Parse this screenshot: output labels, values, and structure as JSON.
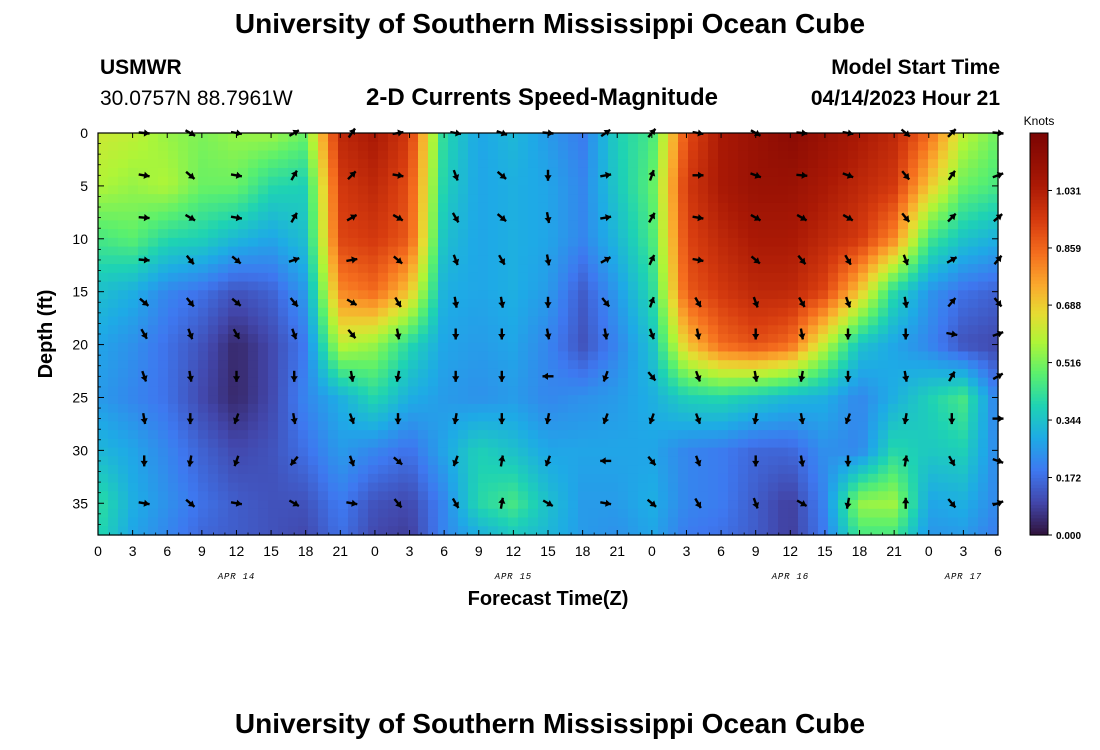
{
  "page": {
    "title": "University of Southern Mississippi Ocean Cube",
    "title_bottom": "University of Southern Mississippi Ocean Cube",
    "station": "USMWR",
    "coords": "30.0757N  88.7961W",
    "plot_title": "2-D Currents Speed-Magnitude",
    "model_label": "Model Start Time",
    "model_time": "04/14/2023 Hour 21"
  },
  "chart_data": {
    "type": "heatmap",
    "title": "2-D Currents Speed-Magnitude",
    "xlabel": "Forecast Time(Z)",
    "ylabel": "Depth (ft)",
    "x_range_hours": [
      0,
      78
    ],
    "ylim": [
      0,
      38
    ],
    "y_inverted": true,
    "x_tick_labels": [
      "0",
      "3",
      "6",
      "9",
      "12",
      "15",
      "18",
      "21",
      "0",
      "3",
      "6",
      "9",
      "12",
      "15",
      "18",
      "21",
      "0",
      "3",
      "6",
      "9",
      "12",
      "15",
      "18",
      "21",
      "0",
      "3",
      "6"
    ],
    "date_labels": [
      {
        "hour": 12,
        "label": "APR 14"
      },
      {
        "hour": 36,
        "label": "APR 15"
      },
      {
        "hour": 60,
        "label": "APR 16"
      },
      {
        "hour": 75,
        "label": "APR 17"
      }
    ],
    "y_ticks": [
      0,
      5,
      10,
      15,
      20,
      25,
      30,
      35
    ],
    "colorbar": {
      "label": "Knots",
      "ticks": [
        "1.031",
        "0.859",
        "0.688",
        "0.516",
        "0.344",
        "0.172",
        "0.000"
      ],
      "min": 0.0,
      "max": 1.203
    },
    "speed_field": {
      "note": "Approximate current speed (knots). Rows = depth (ft), columns = forecast hour.",
      "hours": [
        0,
        3,
        6,
        9,
        12,
        15,
        18,
        21,
        24,
        27,
        30,
        33,
        36,
        39,
        42,
        45,
        48,
        51,
        54,
        57,
        60,
        63,
        66,
        69,
        72,
        75,
        78
      ],
      "depths": [
        0,
        5,
        10,
        15,
        20,
        25,
        30,
        35,
        38
      ],
      "values": [
        [
          0.62,
          0.6,
          0.55,
          0.52,
          0.55,
          0.56,
          0.5,
          1.0,
          1.05,
          0.95,
          0.4,
          0.28,
          0.32,
          0.26,
          0.2,
          0.38,
          0.45,
          0.9,
          1.05,
          1.1,
          1.15,
          1.1,
          1.05,
          1.0,
          0.85,
          0.6,
          0.5
        ],
        [
          0.58,
          0.55,
          0.58,
          0.5,
          0.5,
          0.4,
          0.38,
          0.95,
          1.0,
          0.9,
          0.38,
          0.28,
          0.3,
          0.28,
          0.22,
          0.36,
          0.48,
          0.95,
          1.05,
          1.1,
          1.1,
          1.05,
          1.0,
          0.95,
          0.7,
          0.5,
          0.45
        ],
        [
          0.45,
          0.48,
          0.4,
          0.38,
          0.32,
          0.28,
          0.34,
          0.92,
          0.95,
          0.88,
          0.34,
          0.28,
          0.3,
          0.28,
          0.22,
          0.32,
          0.45,
          0.92,
          1.0,
          1.05,
          1.05,
          1.0,
          0.95,
          0.8,
          0.45,
          0.35,
          0.3
        ],
        [
          0.34,
          0.3,
          0.22,
          0.18,
          0.12,
          0.15,
          0.26,
          0.8,
          0.85,
          0.7,
          0.3,
          0.28,
          0.3,
          0.26,
          0.14,
          0.26,
          0.4,
          0.88,
          0.95,
          1.0,
          1.0,
          0.92,
          0.7,
          0.4,
          0.25,
          0.18,
          0.15
        ],
        [
          0.28,
          0.24,
          0.18,
          0.12,
          0.04,
          0.1,
          0.2,
          0.6,
          0.55,
          0.4,
          0.28,
          0.26,
          0.28,
          0.22,
          0.12,
          0.22,
          0.34,
          0.7,
          0.85,
          0.9,
          0.85,
          0.6,
          0.35,
          0.28,
          0.22,
          0.12,
          0.1
        ],
        [
          0.26,
          0.22,
          0.18,
          0.1,
          0.04,
          0.1,
          0.22,
          0.3,
          0.4,
          0.3,
          0.26,
          0.24,
          0.26,
          0.22,
          0.24,
          0.26,
          0.3,
          0.38,
          0.4,
          0.36,
          0.32,
          0.3,
          0.22,
          0.3,
          0.38,
          0.45,
          0.2
        ],
        [
          0.32,
          0.28,
          0.22,
          0.15,
          0.1,
          0.12,
          0.18,
          0.26,
          0.22,
          0.18,
          0.28,
          0.38,
          0.34,
          0.28,
          0.28,
          0.28,
          0.28,
          0.22,
          0.2,
          0.16,
          0.16,
          0.24,
          0.22,
          0.4,
          0.36,
          0.38,
          0.22
        ],
        [
          0.42,
          0.3,
          0.24,
          0.18,
          0.14,
          0.12,
          0.12,
          0.2,
          0.12,
          0.1,
          0.22,
          0.4,
          0.45,
          0.34,
          0.26,
          0.26,
          0.3,
          0.22,
          0.2,
          0.14,
          0.08,
          0.22,
          0.55,
          0.56,
          0.28,
          0.3,
          0.22
        ],
        [
          0.4,
          0.28,
          0.22,
          0.16,
          0.14,
          0.12,
          0.1,
          0.18,
          0.1,
          0.08,
          0.22,
          0.3,
          0.36,
          0.32,
          0.26,
          0.24,
          0.28,
          0.2,
          0.18,
          0.14,
          0.08,
          0.2,
          0.45,
          0.45,
          0.25,
          0.26,
          0.2
        ]
      ]
    },
    "vector_grid": {
      "hours": [
        4,
        8,
        12,
        17,
        22,
        26,
        31,
        35,
        39,
        44,
        48,
        52,
        57,
        61,
        65,
        70,
        74,
        78
      ],
      "depths": [
        0,
        4,
        8,
        12,
        16,
        19,
        23,
        27,
        31,
        35
      ],
      "direction_deg": [
        [
          95,
          120,
          100,
          60,
          35,
          80,
          100,
          110,
          95,
          55,
          40,
          100,
          120,
          95,
          100,
          130,
          45,
          95
        ],
        [
          100,
          130,
          100,
          30,
          45,
          100,
          160,
          130,
          180,
          80,
          20,
          90,
          110,
          95,
          110,
          140,
          35,
          70
        ],
        [
          95,
          120,
          100,
          30,
          60,
          120,
          150,
          130,
          170,
          80,
          30,
          100,
          120,
          120,
          120,
          140,
          45,
          50
        ],
        [
          95,
          140,
          130,
          70,
          80,
          130,
          160,
          150,
          170,
          60,
          25,
          100,
          130,
          140,
          150,
          160,
          60,
          40
        ],
        [
          130,
          140,
          130,
          140,
          120,
          150,
          170,
          170,
          180,
          140,
          20,
          150,
          160,
          150,
          160,
          170,
          40,
          140
        ],
        [
          150,
          160,
          150,
          160,
          140,
          170,
          180,
          180,
          170,
          170,
          160,
          170,
          180,
          170,
          180,
          180,
          100,
          70
        ],
        [
          160,
          170,
          180,
          180,
          170,
          190,
          180,
          180,
          270,
          200,
          140,
          160,
          170,
          190,
          180,
          170,
          30,
          60
        ],
        [
          170,
          180,
          200,
          170,
          160,
          180,
          190,
          180,
          190,
          200,
          200,
          160,
          190,
          170,
          200,
          190,
          180,
          90
        ],
        [
          180,
          190,
          200,
          220,
          160,
          130,
          200,
          10,
          200,
          270,
          140,
          160,
          180,
          170,
          180,
          10,
          150,
          110
        ],
        [
          100,
          130,
          100,
          120,
          100,
          140,
          150,
          10,
          120,
          100,
          130,
          150,
          160,
          120,
          190,
          0,
          140,
          70
        ]
      ]
    }
  }
}
